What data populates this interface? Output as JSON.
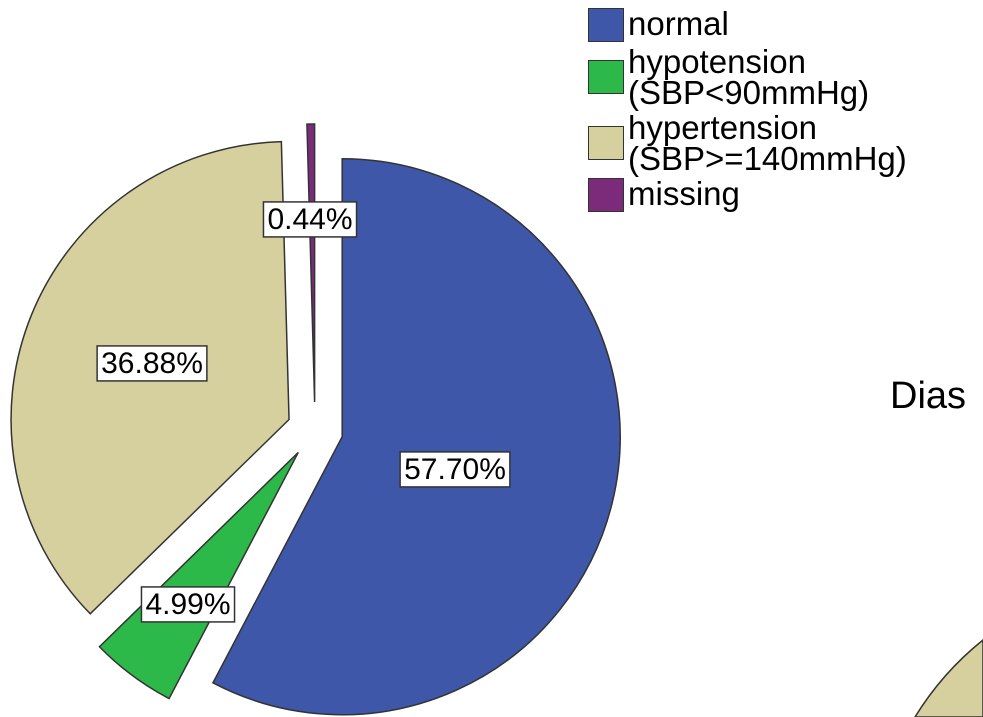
{
  "chart_data": {
    "type": "pie",
    "categories": [
      "normal",
      "hypotension (SBP<90mmHg)",
      "hypertension (SBP>=140mmHg)",
      "missing"
    ],
    "values": [
      57.7,
      4.99,
      36.88,
      0.44
    ],
    "value_labels": [
      "57.70%",
      "4.99%",
      "36.88%",
      "0.44%"
    ],
    "colors": [
      "#3f57a8",
      "#2db84a",
      "#d6cf9e",
      "#7b2b7a"
    ],
    "exploded": true,
    "legend": "top-right",
    "annotations": [
      "Dias"
    ]
  }
}
